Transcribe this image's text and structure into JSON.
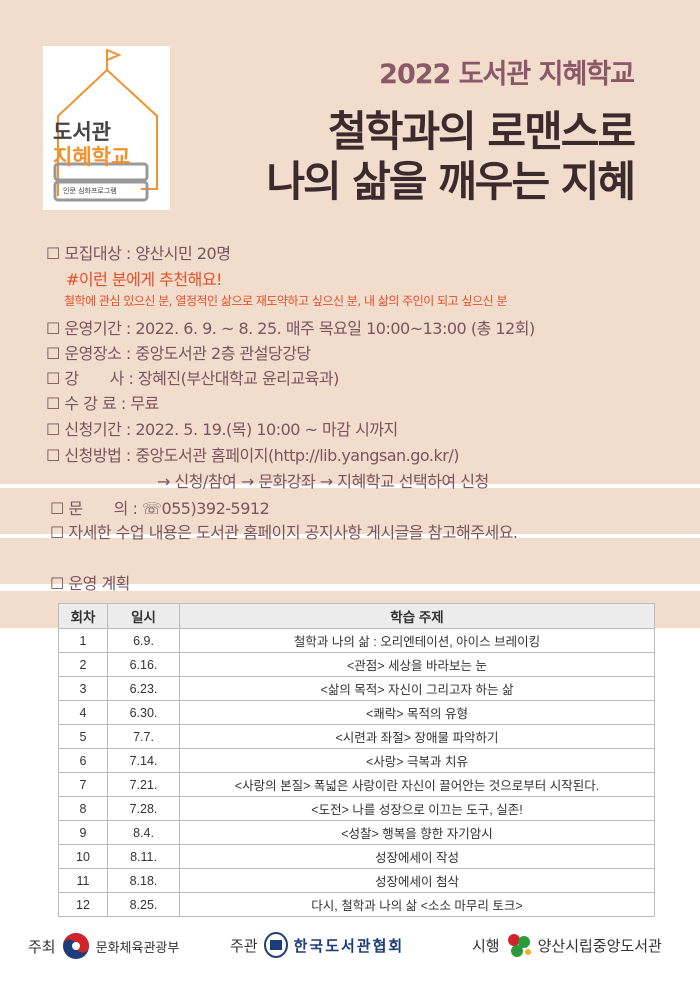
{
  "logo": {
    "line1": "도서관",
    "line2": "지혜학교",
    "line3": "인문 심화프로그램"
  },
  "header": {
    "subtitle": "2022 도서관 지혜학교",
    "title_line1": "철학과의 로맨스로",
    "title_line2": "나의 삶을 깨우는 지혜"
  },
  "info": [
    "☐ 모집대상 : 양산시민 20명",
    "#이런 분에게 추천해요!",
    "철학에 관심 있으신 분, 열정적인 삶으로 재도약하고 싶으신 분, 내 삶의 주인이 되고 싶으신 분",
    "☐ 운영기간 : 2022. 6. 9. ~ 8. 25. 매주 목요일 10:00~13:00 (총 12회)",
    "☐ 운영장소 : 중앙도서관 2층 관설당강당",
    "☐ 강　　사 : 장혜진(부산대학교 윤리교육과)",
    "☐ 수 강 료 : 무료",
    "☐ 신청기간 : 2022. 5. 19.(목) 10:00 ~ 마감 시까지",
    "☐ 신청방법 : 중앙도서관 홈페이지(http://lib.yangsan.go.kr/)",
    "→ 신청/참여 → 문화강좌 → 지혜학교 선택하여 신청",
    "☐ 문　　의 : ☏055)392-5912",
    "☐ 자세한 수업 내용은 도서관 홈페이지 공지사항 게시글을 참고해주세요.",
    "☐ 운영 계획"
  ],
  "schedule": {
    "headers": [
      "회차",
      "일시",
      "학습 주제"
    ],
    "rows": [
      [
        "1",
        "6.9.",
        "철학과 나의 삶 : 오리엔테이션, 아이스 브레이킹"
      ],
      [
        "2",
        "6.16.",
        "<관점> 세상을 바라보는 눈"
      ],
      [
        "3",
        "6.23.",
        "<삶의 목적> 자신이 그리고자 하는 삶"
      ],
      [
        "4",
        "6.30.",
        "<쾌락> 목적의 유형"
      ],
      [
        "5",
        "7.7.",
        "<시련과 좌절> 장애물 파악하기"
      ],
      [
        "6",
        "7.14.",
        "<사랑> 극복과 치유"
      ],
      [
        "7",
        "7.21.",
        "<사랑의 본질> 폭넓은 사랑이란 자신이 끌어안는 것으로부터 시작된다."
      ],
      [
        "8",
        "7.28.",
        "<도전> 나를 성장으로 이끄는 도구, 실존!"
      ],
      [
        "9",
        "8.4.",
        "<성찰> 행복을 향한 자기암시"
      ],
      [
        "10",
        "8.11.",
        "성장에세이 작성"
      ],
      [
        "11",
        "8.18.",
        "성장에세이 첨삭"
      ],
      [
        "12",
        "8.25.",
        "다시, 철학과 나의 삶 <소소 마무리 토크>"
      ]
    ]
  },
  "footer": {
    "host_label": "주최",
    "host": "문화체육관광부",
    "organizer_label": "주관",
    "organizer": "한국도서관협회",
    "operator_label": "시행",
    "operator": "양산시립중앙도서관"
  },
  "colors": {
    "background": "#f2dccb",
    "accent": "#e0502a",
    "logo_orange": "#f0922e"
  }
}
